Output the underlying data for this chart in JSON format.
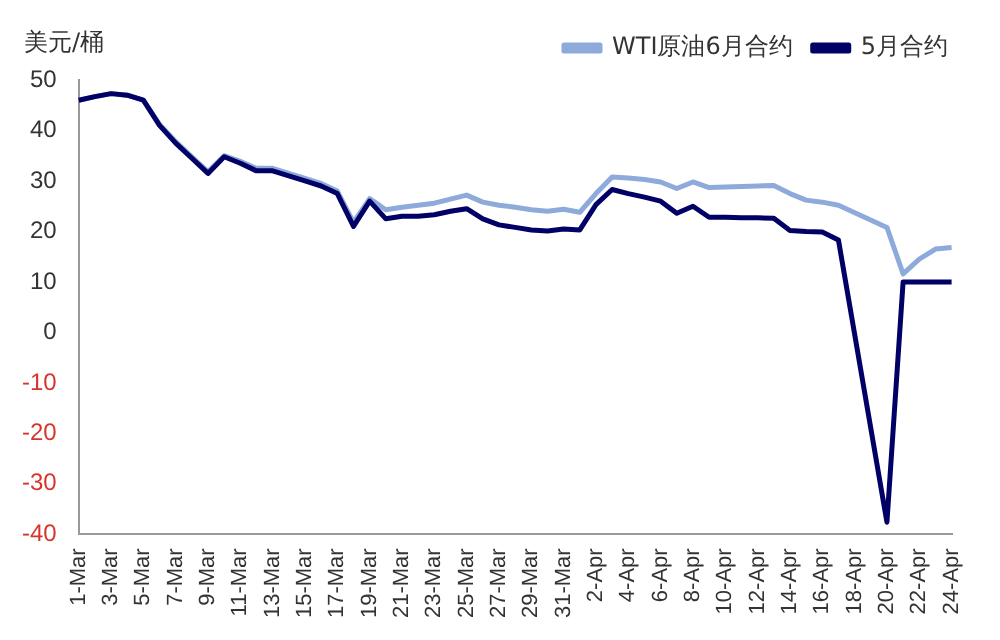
{
  "chart_data": {
    "type": "line",
    "ylabel": "美元/桶",
    "categories": [
      "1-Mar",
      null,
      "3-Mar",
      null,
      "5-Mar",
      null,
      "7-Mar",
      null,
      "9-Mar",
      null,
      "11-Mar",
      null,
      "13-Mar",
      null,
      "15-Mar",
      null,
      "17-Mar",
      null,
      "19-Mar",
      null,
      "21-Mar",
      null,
      "23-Mar",
      null,
      "25-Mar",
      null,
      "27-Mar",
      null,
      "29-Mar",
      null,
      "31-Mar",
      null,
      "2-Apr",
      null,
      "4-Apr",
      null,
      "6-Apr",
      null,
      "8-Apr",
      null,
      "10-Apr",
      null,
      "12-Apr",
      null,
      "14-Apr",
      null,
      "16-Apr",
      null,
      "18-Apr",
      null,
      "20-Apr",
      null,
      "22-Apr",
      null,
      "24-Apr"
    ],
    "series": [
      {
        "name": "WTI原油6月合约",
        "color": "#8eaadb",
        "values": [
          46,
          46.7,
          47.3,
          47,
          46,
          41.2,
          37.8,
          34.8,
          31.8,
          35,
          33.9,
          32.5,
          32.5,
          31.5,
          30.5,
          29.5,
          28,
          21.8,
          26.5,
          24.3,
          24.8,
          25.2,
          25.6,
          26.4,
          27.2,
          25.8,
          25.2,
          24.8,
          24.3,
          24,
          24.4,
          23.8,
          27.5,
          30.8,
          30.6,
          30.3,
          29.8,
          28.5,
          29.8,
          28.7,
          28.8,
          28.9,
          29,
          29.1,
          27.5,
          26.2,
          25.8,
          25.2,
          null,
          null,
          20.8,
          11.6,
          14.5,
          16.5,
          16.8
        ]
      },
      {
        "name": "5月合约",
        "color": "#000066",
        "values": [
          46,
          46.7,
          47.3,
          47,
          46,
          41,
          37.5,
          34.5,
          31.5,
          34.8,
          33.5,
          32,
          32,
          31,
          30,
          29,
          27.5,
          21,
          26,
          22.5,
          23,
          23,
          23.3,
          24,
          24.5,
          22.5,
          21.3,
          20.8,
          20.3,
          20.1,
          20.5,
          20.3,
          25.3,
          28.3,
          27.5,
          26.8,
          26,
          23.6,
          25,
          22.8,
          22.8,
          22.7,
          22.7,
          22.6,
          20.2,
          20,
          19.9,
          18.3,
          null,
          null,
          -37.6,
          10,
          10,
          10,
          10
        ]
      }
    ],
    "ylim": [
      -40,
      50
    ],
    "yticks": [
      -40,
      -30,
      -20,
      -10,
      0,
      10,
      20,
      30,
      40,
      50
    ],
    "grid": false,
    "legend": "top",
    "marker": "none",
    "line_style": "solid"
  }
}
